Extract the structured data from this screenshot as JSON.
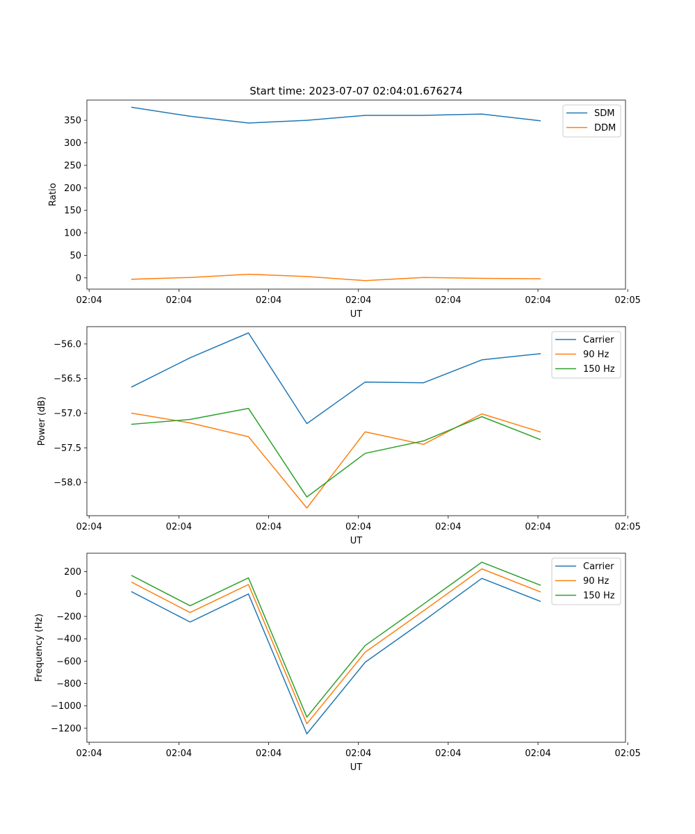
{
  "chart_data": [
    {
      "type": "line",
      "title": "Start time: 2023-07-07 02:04:01.676274",
      "xlabel": "UT",
      "ylabel": "Ratio",
      "xlim": [
        0,
        12
      ],
      "ylim": [
        -25,
        395
      ],
      "x": [
        1,
        2.3,
        3.6,
        4.9,
        6.2,
        7.5,
        8.8,
        10.1
      ],
      "xticks": [
        0.05,
        2.05,
        4.05,
        6.05,
        8.05,
        10.05,
        12.05
      ],
      "xtick_labels": [
        "02:04",
        "02:04",
        "02:04",
        "02:04",
        "02:04",
        "02:04",
        "02:05"
      ],
      "yticks": [
        0,
        50,
        100,
        150,
        200,
        250,
        300,
        350
      ],
      "ytick_labels": [
        "0",
        "50",
        "100",
        "150",
        "200",
        "250",
        "300",
        "350"
      ],
      "legend_position": "top-right",
      "series": [
        {
          "name": "SDM",
          "color": "#1f77b4",
          "values": [
            379,
            359,
            344,
            350,
            361,
            361,
            364,
            349
          ]
        },
        {
          "name": "DDM",
          "color": "#ff7f0e",
          "values": [
            -3,
            1,
            8,
            3,
            -6,
            1,
            -1,
            -2
          ]
        }
      ]
    },
    {
      "type": "line",
      "title": "",
      "xlabel": "UT",
      "ylabel": "Power (dB)",
      "xlim": [
        0,
        12
      ],
      "ylim": [
        -58.48,
        -55.75
      ],
      "x": [
        1,
        2.3,
        3.6,
        4.9,
        6.2,
        7.5,
        8.8,
        10.1
      ],
      "xticks": [
        0.05,
        2.05,
        4.05,
        6.05,
        8.05,
        10.05,
        12.05
      ],
      "xtick_labels": [
        "02:04",
        "02:04",
        "02:04",
        "02:04",
        "02:04",
        "02:04",
        "02:05"
      ],
      "yticks": [
        -58.0,
        -57.5,
        -57.0,
        -56.5,
        -56.0
      ],
      "ytick_labels": [
        "−58.0",
        "−57.5",
        "−57.0",
        "−56.5",
        "−56.0"
      ],
      "legend_position": "top-right",
      "series": [
        {
          "name": "Carrier",
          "color": "#1f77b4",
          "values": [
            -56.62,
            -56.2,
            -55.84,
            -57.15,
            -56.55,
            -56.56,
            -56.23,
            -56.14
          ]
        },
        {
          "name": "90 Hz",
          "color": "#ff7f0e",
          "values": [
            -57.0,
            -57.14,
            -57.34,
            -58.37,
            -57.27,
            -57.45,
            -57.01,
            -57.27
          ]
        },
        {
          "name": "150 Hz",
          "color": "#2ca02c",
          "values": [
            -57.16,
            -57.09,
            -56.93,
            -58.21,
            -57.58,
            -57.4,
            -57.05,
            -57.38
          ]
        }
      ]
    },
    {
      "type": "line",
      "title": "",
      "xlabel": "UT",
      "ylabel": "Frequency (Hz)",
      "xlim": [
        0,
        12
      ],
      "ylim": [
        -1325,
        365
      ],
      "x": [
        1,
        2.3,
        3.6,
        4.9,
        6.2,
        7.5,
        8.8,
        10.1
      ],
      "xticks": [
        0.05,
        2.05,
        4.05,
        6.05,
        8.05,
        10.05,
        12.05
      ],
      "xtick_labels": [
        "02:04",
        "02:04",
        "02:04",
        "02:04",
        "02:04",
        "02:04",
        "02:05"
      ],
      "yticks": [
        -1200,
        -1000,
        -800,
        -600,
        -400,
        -200,
        0,
        200
      ],
      "ytick_labels": [
        "−1200",
        "−1000",
        "−800",
        "−600",
        "−400",
        "−200",
        "0",
        "200"
      ],
      "legend_position": "top-right",
      "series": [
        {
          "name": "Carrier",
          "color": "#1f77b4",
          "values": [
            20,
            -250,
            0,
            -1250,
            -610,
            -240,
            140,
            -65
          ]
        },
        {
          "name": "90 Hz",
          "color": "#ff7f0e",
          "values": [
            105,
            -165,
            85,
            -1160,
            -520,
            -150,
            225,
            20
          ]
        },
        {
          "name": "150 Hz",
          "color": "#2ca02c",
          "values": [
            165,
            -105,
            145,
            -1100,
            -460,
            -90,
            285,
            80
          ]
        }
      ]
    }
  ]
}
